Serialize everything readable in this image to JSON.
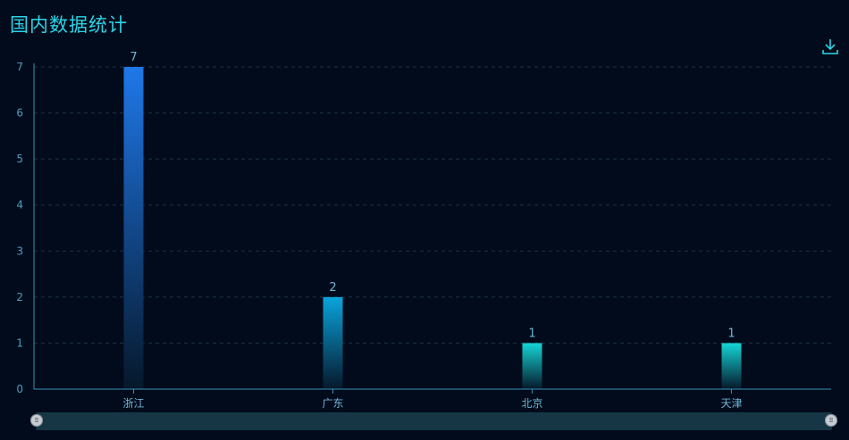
{
  "header": {
    "title": "国内数据统计"
  },
  "toolbar": {
    "download_icon": "download-icon"
  },
  "colors": {
    "title": "#2ad4e6",
    "axis": "#3a8fb4",
    "grid": "#1c3346",
    "bar_blue": "#1f78ea",
    "bar_sky": "#0aa4dc",
    "bar_teal": "#14d6d6"
  },
  "chart_data": {
    "type": "bar",
    "title": "国内数据统计",
    "categories": [
      "浙江",
      "广东",
      "北京",
      "天津"
    ],
    "values": [
      7,
      2,
      1,
      1
    ],
    "data_labels": [
      "7",
      "2",
      "1",
      "1"
    ],
    "ylim": [
      0,
      7
    ],
    "yticks": [
      "0",
      "1",
      "2",
      "3",
      "4",
      "5",
      "6",
      "7"
    ],
    "grid": true,
    "data_zoom": {
      "start": 0,
      "end": 100
    }
  }
}
